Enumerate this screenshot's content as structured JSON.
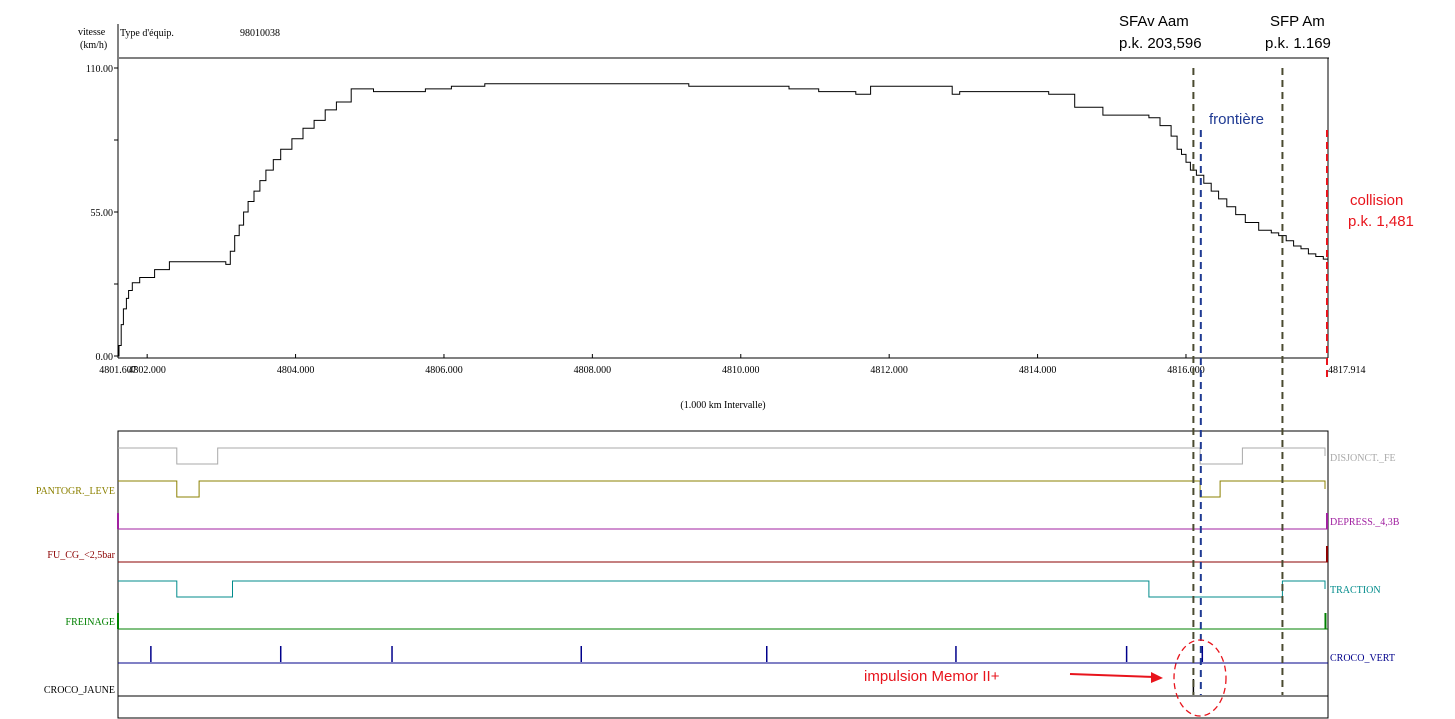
{
  "header": {
    "speed_axis_label_line1": "vitesse",
    "speed_axis_label_line2": "(km/h)",
    "equipment_type_label": "Type d'équip.",
    "equipment_type_value": "98010038"
  },
  "x_interval_label": "(1.000 km Intervalle)",
  "annotations": {
    "sfav_line1": "SFAv Aam",
    "sfav_line2": "p.k. 203,596",
    "sfp_line1": "SFP Am",
    "sfp_line2": "p.k. 1.169",
    "frontiere": "frontière",
    "collision_line1": "collision",
    "collision_line2": "p.k. 1,481",
    "impulse": "impulsion Memor II+"
  },
  "colors": {
    "speed_trace": "#000000",
    "sfav_marker": "#4a4a30",
    "sfp_marker": "#4a4a30",
    "frontiere_marker": "#1f3a93",
    "collision_marker": "#e8141c",
    "annotation_red": "#e8141c",
    "frontiere_text": "#1f3a93"
  },
  "chart_data": {
    "type": "line",
    "title": "",
    "xlabel": "(1.000 km Intervalle)",
    "ylabel": "vitesse (km/h)",
    "xlim": [
      4801.607,
      4817.914
    ],
    "ylim": [
      0,
      110
    ],
    "x_ticks": [
      "4801.607",
      "4802.000",
      "4804.000",
      "4806.000",
      "4808.000",
      "4810.000",
      "4812.000",
      "4814.000",
      "4816.000",
      "4817.914"
    ],
    "y_ticks": [
      "0.00",
      "55.00",
      "110.00"
    ],
    "speed_profile": [
      [
        4801.607,
        0
      ],
      [
        4801.62,
        4
      ],
      [
        4801.65,
        12
      ],
      [
        4801.68,
        18
      ],
      [
        4801.72,
        22
      ],
      [
        4801.75,
        25
      ],
      [
        4801.8,
        28
      ],
      [
        4801.9,
        30
      ],
      [
        4802.1,
        33
      ],
      [
        4802.3,
        36
      ],
      [
        4802.7,
        36
      ],
      [
        4803.06,
        35
      ],
      [
        4803.12,
        40
      ],
      [
        4803.18,
        46
      ],
      [
        4803.24,
        50
      ],
      [
        4803.3,
        55
      ],
      [
        4803.36,
        59
      ],
      [
        4803.44,
        63
      ],
      [
        4803.52,
        67
      ],
      [
        4803.6,
        71
      ],
      [
        4803.7,
        75
      ],
      [
        4803.8,
        79
      ],
      [
        4803.95,
        83
      ],
      [
        4804.1,
        87
      ],
      [
        4804.25,
        90
      ],
      [
        4804.4,
        94
      ],
      [
        4804.55,
        97
      ],
      [
        4804.75,
        102
      ],
      [
        4805.05,
        101
      ],
      [
        4805.75,
        102
      ],
      [
        4806.1,
        103
      ],
      [
        4806.55,
        104
      ],
      [
        4809.3,
        103
      ],
      [
        4810.65,
        102
      ],
      [
        4811.05,
        101
      ],
      [
        4811.55,
        100
      ],
      [
        4811.75,
        103
      ],
      [
        4812.85,
        100
      ],
      [
        4812.95,
        101
      ],
      [
        4814.15,
        100
      ],
      [
        4814.5,
        95
      ],
      [
        4814.88,
        92
      ],
      [
        4815.5,
        91
      ],
      [
        4815.65,
        88
      ],
      [
        4815.8,
        84
      ],
      [
        4815.88,
        79
      ],
      [
        4815.94,
        77
      ],
      [
        4816.0,
        74
      ],
      [
        4816.06,
        71
      ],
      [
        4816.14,
        69
      ],
      [
        4816.24,
        66
      ],
      [
        4816.34,
        63
      ],
      [
        4816.44,
        60
      ],
      [
        4816.55,
        57
      ],
      [
        4816.67,
        54
      ],
      [
        4816.8,
        51
      ],
      [
        4816.98,
        48
      ],
      [
        4817.15,
        47
      ],
      [
        4817.25,
        46
      ],
      [
        4817.35,
        44
      ],
      [
        4817.45,
        42
      ],
      [
        4817.55,
        41
      ],
      [
        4817.65,
        39
      ],
      [
        4817.75,
        38
      ],
      [
        4817.85,
        37
      ],
      [
        4817.914,
        36
      ]
    ],
    "markers": [
      {
        "label": "SFAv Aam",
        "x": 4816.1
      },
      {
        "label": "frontière",
        "x": 4816.2
      },
      {
        "label": "SFP Am",
        "x": 4817.3
      },
      {
        "label": "collision",
        "x": 4817.914
      }
    ],
    "digital_signals": [
      {
        "name": "DISJONCT._FE",
        "color": "#a9a9a9",
        "side": "right",
        "lows": [
          [
            4802.4,
            4802.95
          ],
          [
            4816.19,
            4816.76
          ]
        ],
        "tail_low": true
      },
      {
        "name": "PANTOGR._LEVE",
        "color": "#8b8000",
        "side": "left",
        "lows": [
          [
            4802.4,
            4802.7
          ],
          [
            4816.19,
            4816.46
          ]
        ],
        "tail_low": true
      },
      {
        "name": "DEPRESS._4,3B",
        "color": "#a020a0",
        "side": "right",
        "spikes": [
          4801.607,
          4817.914
        ]
      },
      {
        "name": "FU_CG_<2,5bar",
        "color": "#8b0000",
        "side": "left",
        "spikes": [
          4817.914
        ]
      },
      {
        "name": "TRACTION",
        "color": "#008b8b",
        "side": "right",
        "lows": [
          [
            4802.4,
            4803.15
          ],
          [
            4815.5,
            4817.3
          ]
        ],
        "tail_low": true
      },
      {
        "name": "FREINAGE",
        "color": "#008000",
        "side": "left",
        "spikes": [
          4801.607,
          4817.88
        ]
      },
      {
        "name": "CROCO_VERT",
        "color": "#00008b",
        "side": "right",
        "pulses": [
          4802.05,
          4803.8,
          4805.3,
          4807.85,
          4810.35,
          4812.9,
          4815.2,
          4816.22
        ]
      },
      {
        "name": "CROCO_JAUNE",
        "color": "#000000",
        "side": "left",
        "pulses": [
          4816.1
        ]
      }
    ]
  }
}
